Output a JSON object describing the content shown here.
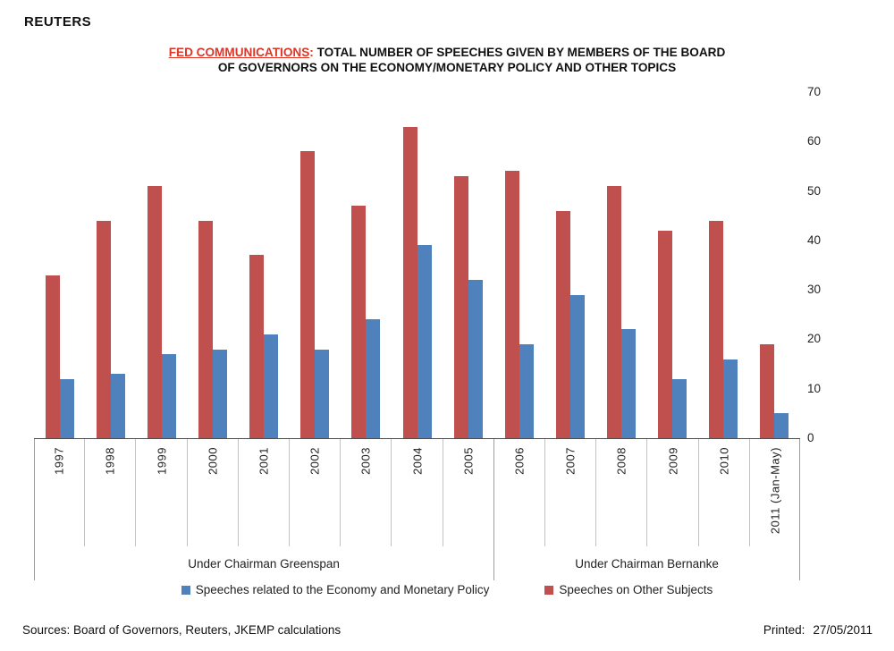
{
  "header": {
    "logo": "REUTERS"
  },
  "title": {
    "highlight": "FED COMMUNICATIONS",
    "colon": ":",
    "rest_line1": " TOTAL NUMBER OF SPEECHES GIVEN BY MEMBERS OF THE BOARD",
    "line2": "OF GOVERNORS ON THE ECONOMY/MONETARY POLICY AND OTHER TOPICS",
    "highlight_color": "#de3526"
  },
  "chart_data": {
    "type": "bar",
    "title": "FED COMMUNICATIONS: TOTAL NUMBER OF SPEECHES GIVEN BY MEMBERS OF THE BOARD OF GOVERNORS ON THE ECONOMY/MONETARY POLICY AND OTHER TOPICS",
    "categories": [
      "1997",
      "1998",
      "1999",
      "2000",
      "2001",
      "2002",
      "2003",
      "2004",
      "2005",
      "2006",
      "2007",
      "2008",
      "2009",
      "2010",
      "2011 (Jan-May)"
    ],
    "series": [
      {
        "name": "Speeches on Other Subjects",
        "color": "#C0504D",
        "values": [
          33,
          44,
          51,
          44,
          37,
          58,
          47,
          63,
          53,
          54,
          46,
          51,
          42,
          44,
          19
        ]
      },
      {
        "name": "Speeches related to the Economy and Monetary Policy",
        "color": "#4F81BD",
        "values": [
          12,
          13,
          17,
          18,
          21,
          18,
          24,
          39,
          32,
          19,
          29,
          22,
          12,
          16,
          5
        ]
      }
    ],
    "groups": [
      {
        "label": "Under Chairman Greenspan",
        "span": 9
      },
      {
        "label": "Under Chairman Bernanke",
        "span": 6
      }
    ],
    "ylim": [
      0,
      70
    ],
    "yticks": [
      0,
      10,
      20,
      30,
      40,
      50,
      60,
      70
    ],
    "y_axis_side": "right",
    "grid": false
  },
  "legend": [
    {
      "label": "Speeches related to the Economy and Monetary Policy",
      "color": "#4F81BD"
    },
    {
      "label": "Speeches on Other Subjects",
      "color": "#C0504D"
    }
  ],
  "footer": {
    "sources": "Sources: Board of Governors, Reuters, JKEMP calculations",
    "printed_label": "Printed:",
    "printed_value": "27/05/2011"
  }
}
